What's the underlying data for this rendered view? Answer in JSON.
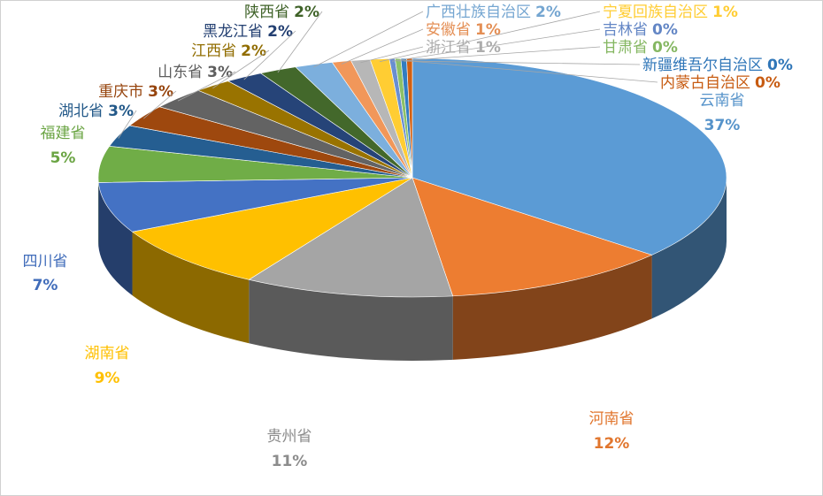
{
  "chart_data": {
    "type": "pie",
    "style": "3d",
    "title": "",
    "legend": "none",
    "data_labels": "category name and percentage",
    "slices": [
      {
        "label": "云南省",
        "value": 37,
        "color": "#5B9BD5"
      },
      {
        "label": "河南省",
        "value": 12,
        "color": "#ED7D31"
      },
      {
        "label": "贵州省",
        "value": 11,
        "color": "#A5A5A5"
      },
      {
        "label": "湖南省",
        "value": 9,
        "color": "#FFC000"
      },
      {
        "label": "四川省",
        "value": 7,
        "color": "#4472C4"
      },
      {
        "label": "福建省",
        "value": 5,
        "color": "#70AD47"
      },
      {
        "label": "湖北省",
        "value": 3,
        "color": "#255E91"
      },
      {
        "label": "重庆市",
        "value": 3,
        "color": "#9E480E"
      },
      {
        "label": "山东省",
        "value": 3,
        "color": "#636363"
      },
      {
        "label": "江西省",
        "value": 2,
        "color": "#997300"
      },
      {
        "label": "黑龙江省",
        "value": 2,
        "color": "#264478"
      },
      {
        "label": "陕西省",
        "value": 2,
        "color": "#43682B"
      },
      {
        "label": "广西壮族自治区",
        "value": 2,
        "color": "#7CAFDD"
      },
      {
        "label": "安徽省",
        "value": 1,
        "color": "#F1975A"
      },
      {
        "label": "浙江省",
        "value": 1,
        "color": "#B7B7B7"
      },
      {
        "label": "宁夏回族自治区",
        "value": 1,
        "color": "#FFCD33"
      },
      {
        "label": "吉林省",
        "value": 0.3,
        "color": "#698ED0"
      },
      {
        "label": "甘肃省",
        "value": 0.3,
        "color": "#8CC168"
      },
      {
        "label": "新疆维吾尔自治区",
        "value": 0.3,
        "color": "#327DC2"
      },
      {
        "label": "内蒙古自治区",
        "value": 0.3,
        "color": "#D26012"
      }
    ],
    "percent_labels": [
      "37%",
      "12%",
      "11%",
      "9%",
      "7%",
      "5%",
      "3%",
      "3%",
      "3%",
      "2%",
      "2%",
      "2%",
      "2%",
      "1%",
      "1%",
      "1%",
      "0%",
      "0%",
      "0%",
      "0%"
    ]
  }
}
